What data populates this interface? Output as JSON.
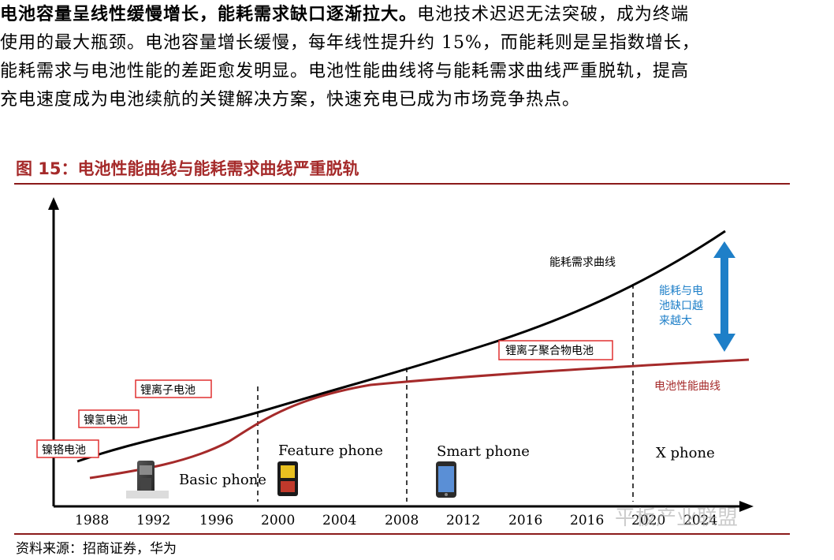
{
  "paragraph": {
    "lead": "电池容量呈线性缓慢增长，能耗需求缺口逐渐拉大。",
    "rest_line1": "电池技术迟迟无法突破，成为终端",
    "line2": "使用的最大瓶颈。电池容量增长缓慢，每年线性提升约 15%，而能耗则是呈指数增长，",
    "line3": "能耗需求与电池性能的差距愈发明显。电池性能曲线将与能耗需求曲线严重脱轨，提高",
    "line4": "充电速度成为电池续航的关键解决方案，快速充电已成为市场竞争热点。"
  },
  "figure": {
    "title": "图 15：电池性能曲线与能耗需求曲线严重脱轨",
    "source": "资料来源：招商证券，华为"
  },
  "chart_data": {
    "type": "line",
    "x_ticks": [
      "1988",
      "1992",
      "1996",
      "2000",
      "2004",
      "2008",
      "2012",
      "2016",
      "2016",
      "2020",
      "2024"
    ],
    "series": [
      {
        "name": "能耗需求曲线",
        "color": "#000000",
        "shape": "exponential"
      },
      {
        "name": "电池性能曲线",
        "color": "#A52A2A",
        "shape": "s-curve"
      }
    ],
    "battery_labels": [
      "镍铬电池",
      "镍氢电池",
      "锂离子电池",
      "锂离子聚合物电池"
    ],
    "phase_labels": [
      "Basic phone",
      "Feature phone",
      "Smart phone",
      "X phone"
    ],
    "gap_annotation": [
      "能耗与电",
      "池缺口越",
      "来越大"
    ],
    "gap_color": "#1E7FC8"
  },
  "watermark": "平板产业联盟"
}
